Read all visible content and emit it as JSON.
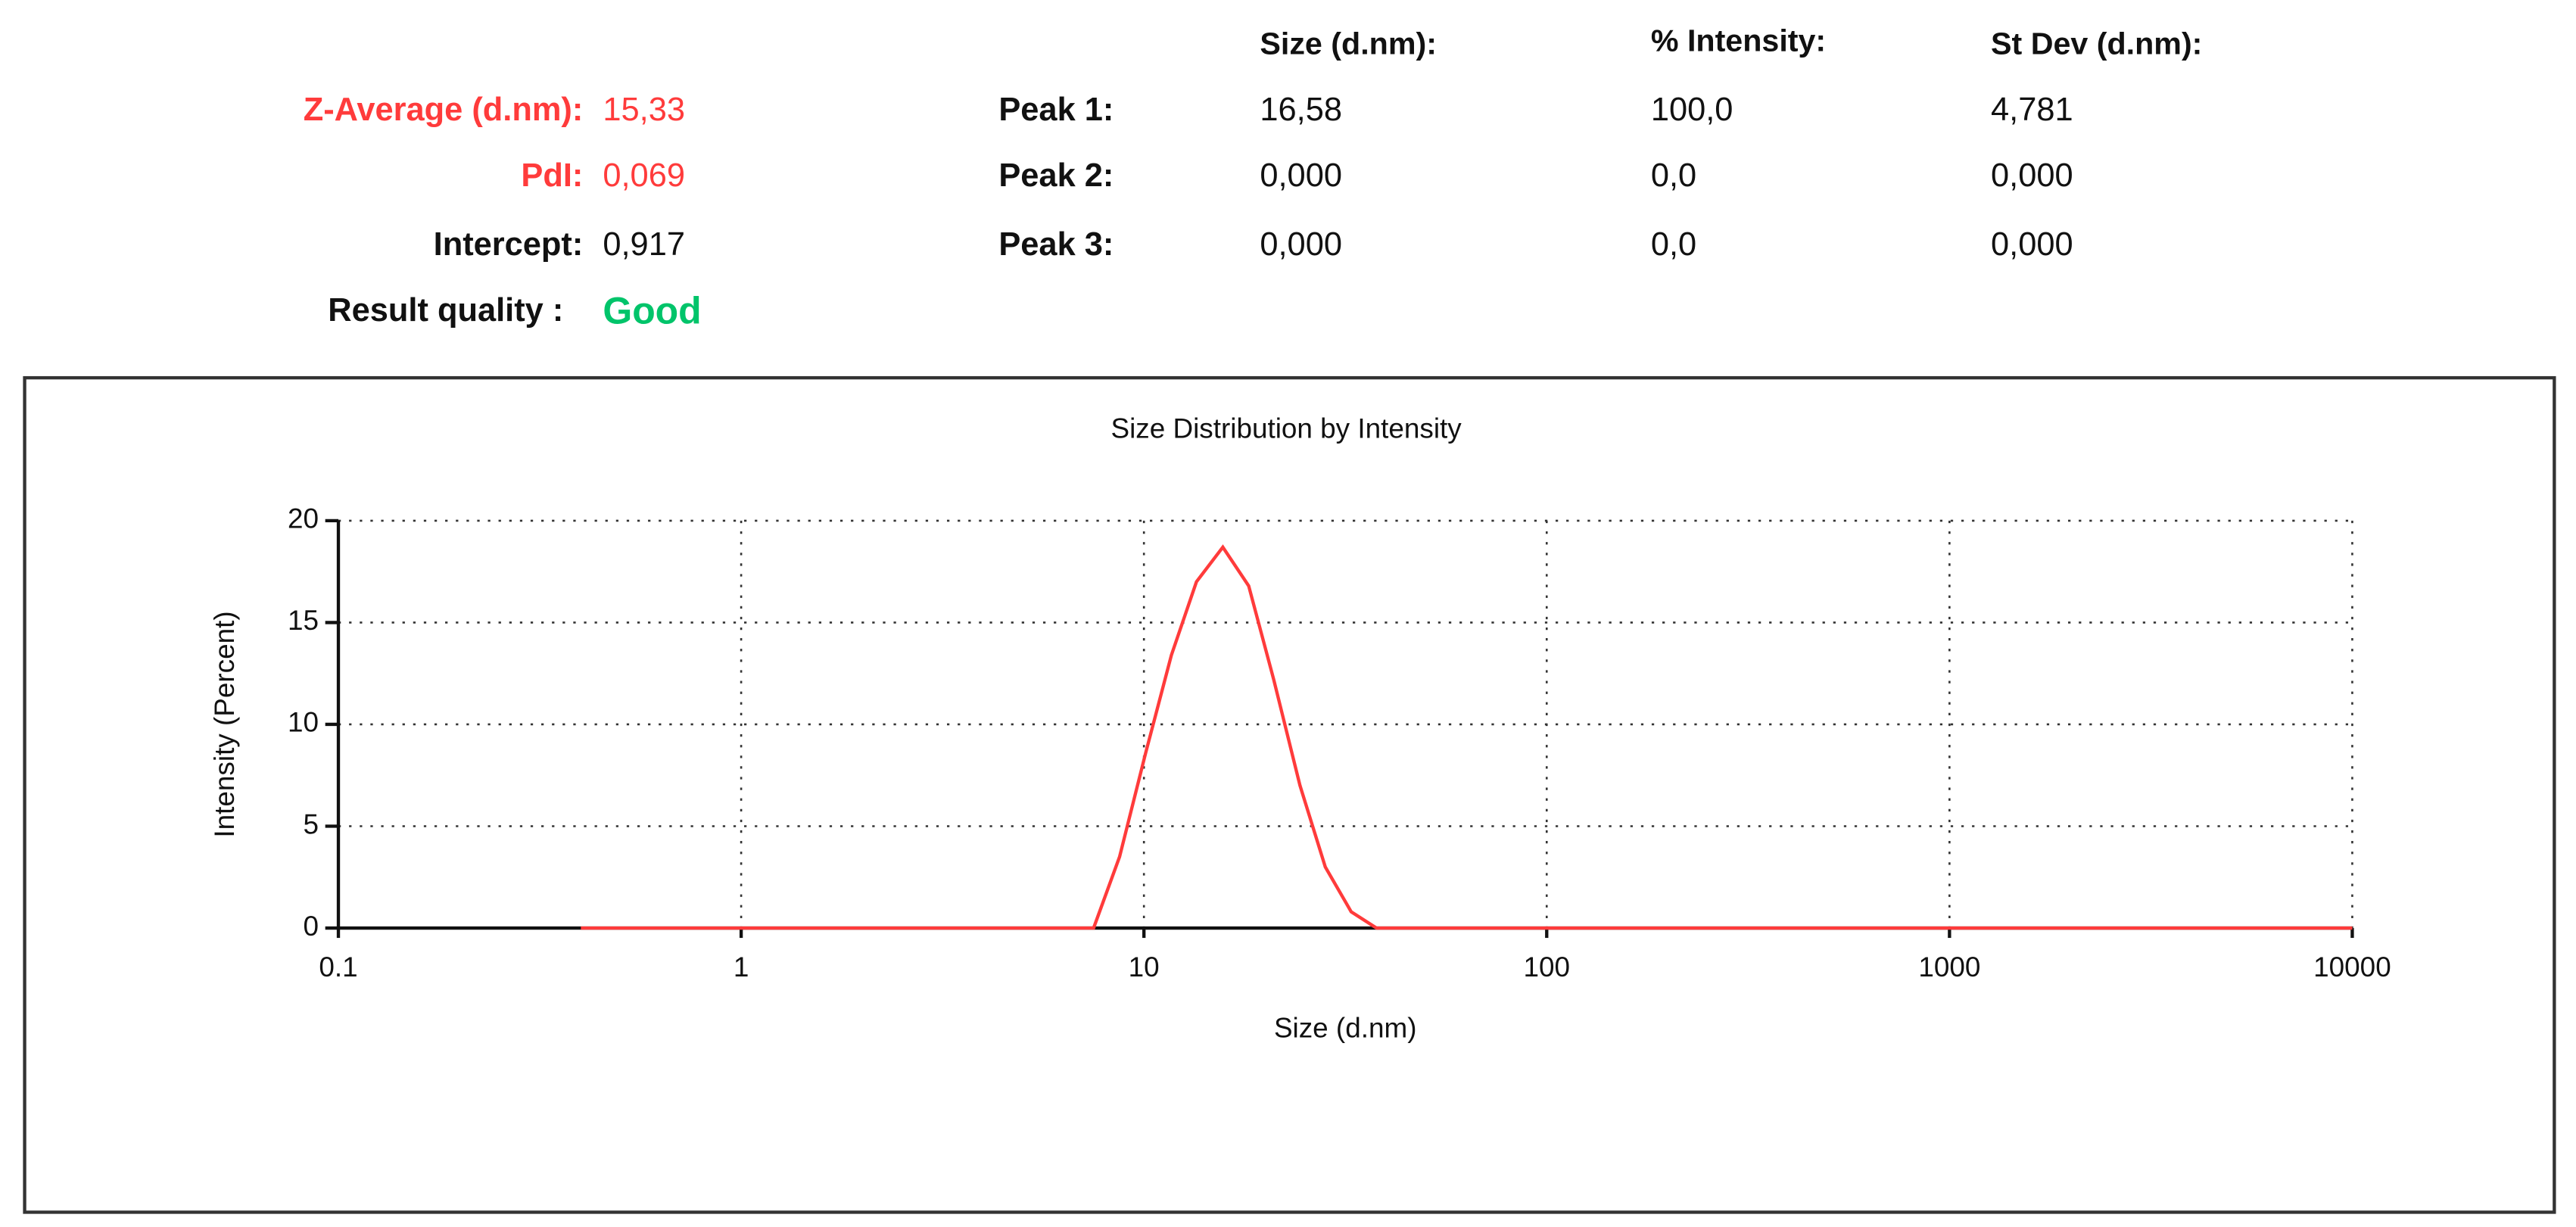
{
  "summary": {
    "rows": [
      {
        "label": "Z-Average (d.nm):",
        "value": "15,33"
      },
      {
        "label": "PdI:",
        "value": "0,069"
      },
      {
        "label": "Intercept:",
        "value": "0,917"
      },
      {
        "label": "Result quality :",
        "value": "Good"
      }
    ]
  },
  "peaks": {
    "headers": [
      "Size (d.nm):",
      "% Intensity:",
      "St Dev (d.nm):"
    ],
    "rows": [
      [
        "Peak 1:",
        "16,58",
        "100,0",
        "4,781"
      ],
      [
        "Peak 2:",
        "0,000",
        "0,0",
        "0,000"
      ],
      [
        "Peak 3:",
        "0,000",
        "0,0",
        "0,000"
      ]
    ]
  },
  "chart_data": {
    "type": "line",
    "title": "Size Distribution by Intensity",
    "x_label": "Size (d.nm)",
    "y_label": "Intensity (Percent)",
    "log_x": true,
    "grid": true,
    "x": [
      0.4,
      0.6,
      1,
      2,
      4,
      6.5,
      7.5,
      8.7,
      10.1,
      11.7,
      13.5,
      15.7,
      18.2,
      21,
      24.4,
      28.2,
      32.7,
      37.8,
      43.8,
      100,
      1000,
      10000
    ],
    "series": [
      {
        "name": "Intensity",
        "color": "#ff3b3b",
        "values": [
          0,
          0,
          0,
          0,
          0,
          0,
          0,
          3.5,
          8.6,
          13.4,
          17.0,
          18.7,
          16.8,
          12.2,
          7.0,
          3.0,
          0.8,
          0,
          0,
          0,
          0,
          0
        ]
      }
    ],
    "xlim": [
      0.1,
      10000
    ],
    "xticks": [
      0.1,
      1,
      10,
      100,
      1000,
      10000
    ],
    "ylim": [
      0,
      20
    ],
    "yticks": [
      0,
      5,
      10,
      15,
      20
    ]
  }
}
